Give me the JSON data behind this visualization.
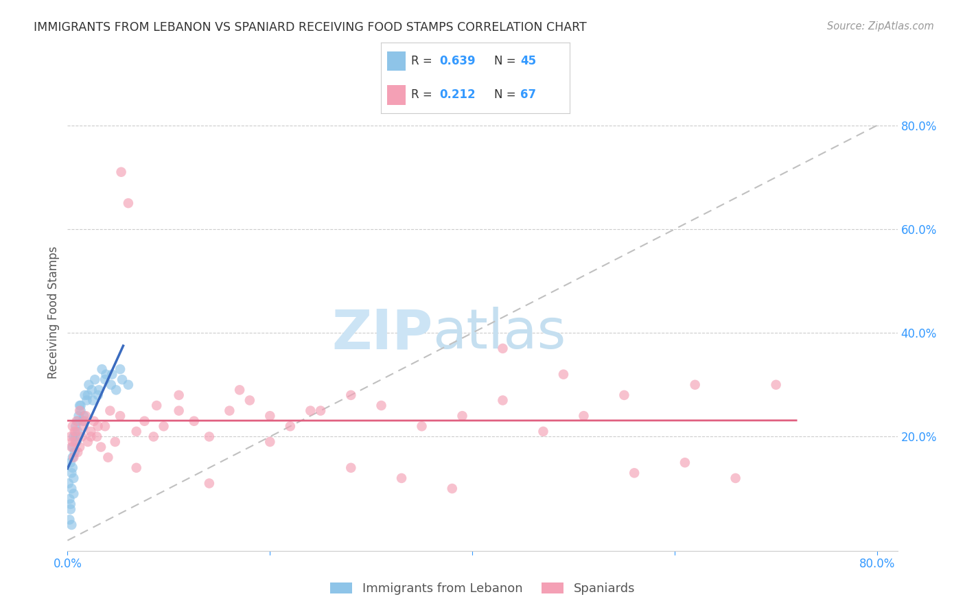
{
  "title": "IMMIGRANTS FROM LEBANON VS SPANIARD RECEIVING FOOD STAMPS CORRELATION CHART",
  "source": "Source: ZipAtlas.com",
  "ylabel": "Receiving Food Stamps",
  "xlim": [
    0.0,
    0.82
  ],
  "ylim": [
    -0.02,
    0.9
  ],
  "color_blue": "#8ec4e8",
  "color_pink": "#f4a0b5",
  "color_blue_line": "#3a6bbf",
  "color_pink_line": "#e06080",
  "color_diag": "#c0c0c0",
  "color_axis_blue": "#3399ff",
  "legend_label_1": "Immigrants from Lebanon",
  "legend_label_2": "Spaniards",
  "blue_x": [
    0.001,
    0.002,
    0.003,
    0.003,
    0.004,
    0.004,
    0.005,
    0.005,
    0.006,
    0.006,
    0.007,
    0.008,
    0.009,
    0.01,
    0.011,
    0.012,
    0.013,
    0.015,
    0.017,
    0.019,
    0.021,
    0.024,
    0.027,
    0.03,
    0.034,
    0.038,
    0.043,
    0.048,
    0.054,
    0.06,
    0.002,
    0.003,
    0.004,
    0.005,
    0.006,
    0.008,
    0.01,
    0.013,
    0.016,
    0.02,
    0.025,
    0.031,
    0.037,
    0.044,
    0.052
  ],
  "blue_y": [
    0.11,
    0.08,
    0.15,
    0.06,
    0.13,
    0.1,
    0.18,
    0.16,
    0.12,
    0.2,
    0.17,
    0.22,
    0.19,
    0.21,
    0.24,
    0.26,
    0.25,
    0.23,
    0.28,
    0.27,
    0.3,
    0.29,
    0.31,
    0.28,
    0.33,
    0.32,
    0.3,
    0.29,
    0.31,
    0.3,
    0.04,
    0.07,
    0.03,
    0.14,
    0.09,
    0.2,
    0.23,
    0.26,
    0.24,
    0.28,
    0.27,
    0.29,
    0.31,
    0.32,
    0.33
  ],
  "pink_x": [
    0.003,
    0.004,
    0.005,
    0.006,
    0.007,
    0.008,
    0.009,
    0.01,
    0.012,
    0.014,
    0.016,
    0.018,
    0.02,
    0.023,
    0.026,
    0.029,
    0.033,
    0.037,
    0.042,
    0.047,
    0.053,
    0.06,
    0.068,
    0.076,
    0.085,
    0.095,
    0.11,
    0.125,
    0.14,
    0.16,
    0.18,
    0.2,
    0.22,
    0.25,
    0.28,
    0.31,
    0.35,
    0.39,
    0.43,
    0.47,
    0.51,
    0.56,
    0.61,
    0.66,
    0.7,
    0.005,
    0.008,
    0.012,
    0.017,
    0.023,
    0.03,
    0.04,
    0.052,
    0.068,
    0.088,
    0.11,
    0.14,
    0.17,
    0.2,
    0.24,
    0.28,
    0.33,
    0.38,
    0.43,
    0.49,
    0.55,
    0.62
  ],
  "pink_y": [
    0.2,
    0.18,
    0.22,
    0.16,
    0.21,
    0.19,
    0.23,
    0.17,
    0.25,
    0.2,
    0.22,
    0.24,
    0.19,
    0.21,
    0.23,
    0.2,
    0.18,
    0.22,
    0.25,
    0.19,
    0.71,
    0.65,
    0.21,
    0.23,
    0.2,
    0.22,
    0.25,
    0.23,
    0.2,
    0.25,
    0.27,
    0.24,
    0.22,
    0.25,
    0.28,
    0.26,
    0.22,
    0.24,
    0.37,
    0.21,
    0.24,
    0.13,
    0.15,
    0.12,
    0.3,
    0.19,
    0.21,
    0.18,
    0.23,
    0.2,
    0.22,
    0.16,
    0.24,
    0.14,
    0.26,
    0.28,
    0.11,
    0.29,
    0.19,
    0.25,
    0.14,
    0.12,
    0.1,
    0.27,
    0.32,
    0.28,
    0.3
  ]
}
